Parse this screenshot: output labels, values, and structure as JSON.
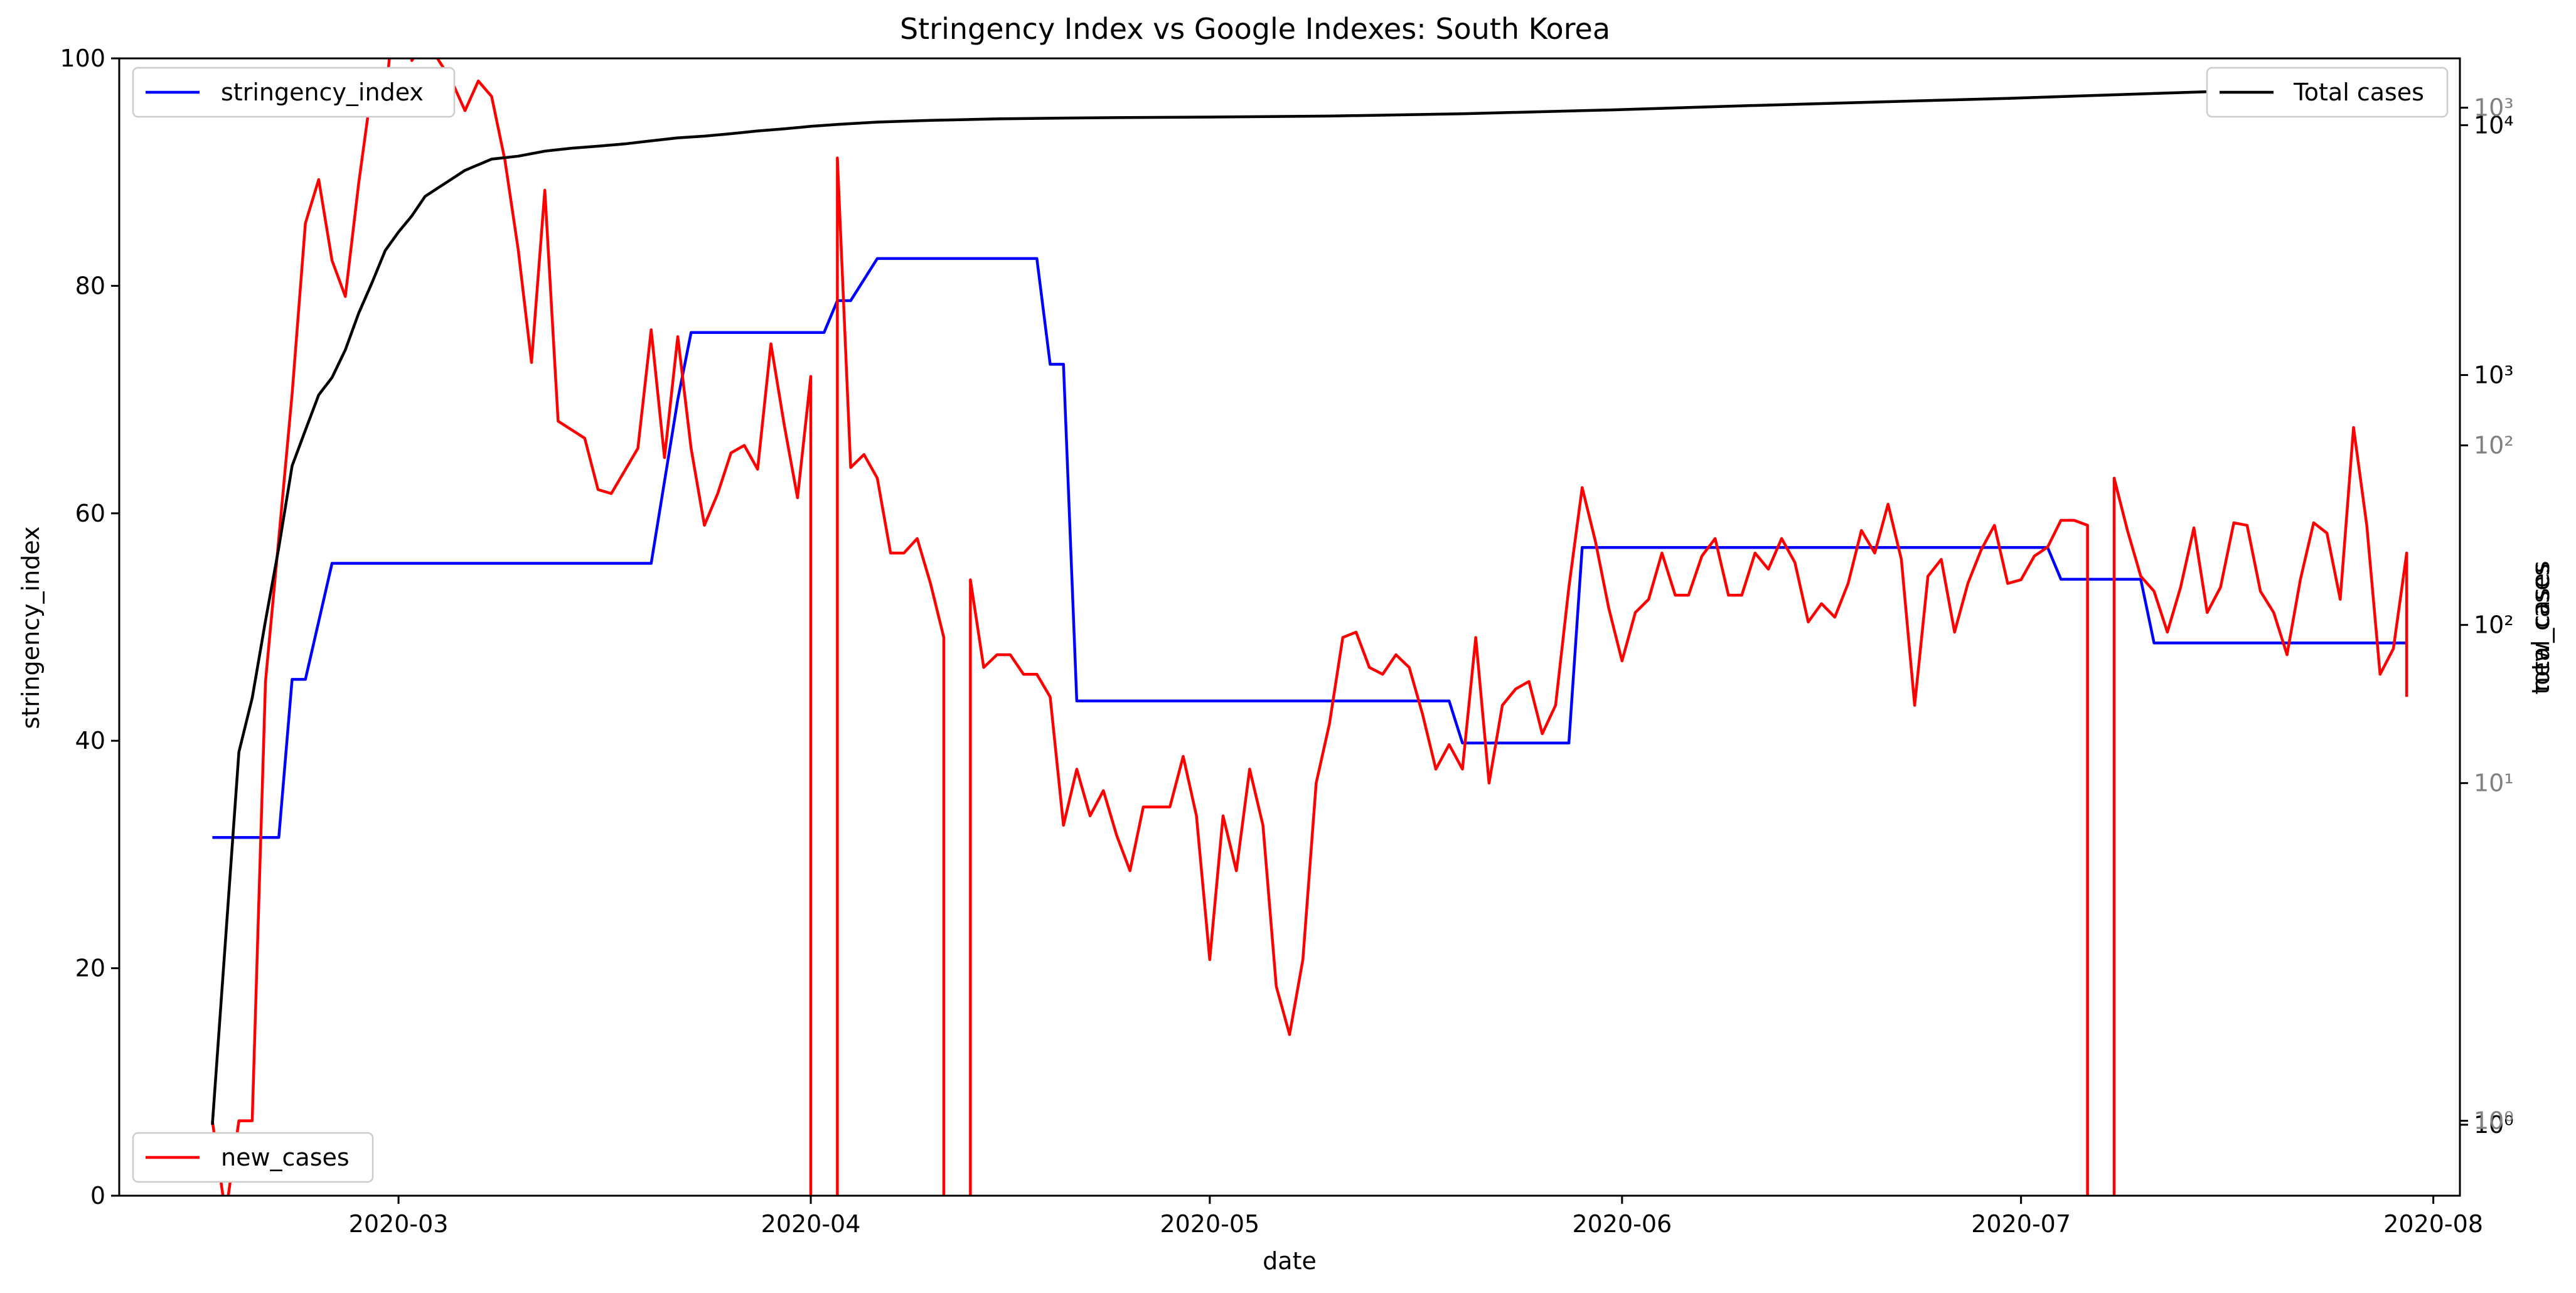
{
  "chart_data": {
    "type": "line",
    "title": "Stringency Index vs Google Indexes:  South Korea",
    "xlabel": "date",
    "ylabel": "stringency_index",
    "ylabel_right": "total_cases",
    "ylabel_right_overlap": "new_cases",
    "x_range": [
      "2020-02-09",
      "2020-08-03"
    ],
    "x_ticks": [
      "2020-03",
      "2020-04",
      "2020-05",
      "2020-06",
      "2020-07",
      "2020-08"
    ],
    "y_left": {
      "range": [
        0,
        100
      ],
      "ticks": [
        "0",
        "20",
        "40",
        "60",
        "80",
        "100"
      ]
    },
    "y_total_cases_axis": {
      "scale": "log",
      "range": [
        0.52,
        18500
      ],
      "tick_values": [
        1,
        100,
        1000,
        10000
      ],
      "tick_labels": [
        "10⁰",
        "10²",
        "10³",
        "10⁴"
      ]
    },
    "y_new_cases_axis": {
      "scale": "log",
      "range": [
        0.6,
        1400
      ],
      "tick_values": [
        1,
        10,
        100,
        1000
      ],
      "tick_labels": [
        "10⁰",
        "10¹",
        "10²",
        "10³"
      ]
    },
    "grid": false,
    "colors": {
      "stringency_index": "#0000ff",
      "new_cases": "#ff0000",
      "total_cases": "#000000",
      "secondary_ticks": "#808080"
    },
    "legends": [
      {
        "label": "stringency_index",
        "color": "#0000ff",
        "placement": "upper-left"
      },
      {
        "label": "new_cases",
        "color": "#ff0000",
        "placement": "lower-left"
      },
      {
        "label": "Total cases",
        "color": "#000000",
        "placement": "upper-right"
      }
    ],
    "series": [
      {
        "name": "stringency_index",
        "color": "#0000ff",
        "axis": "left",
        "points": [
          [
            "2020-02-16",
            31.5
          ],
          [
            "2020-02-21",
            31.5
          ],
          [
            "2020-02-22",
            45.4
          ],
          [
            "2020-02-23",
            45.4
          ],
          [
            "2020-02-25",
            55.6
          ],
          [
            "2020-03-20",
            55.6
          ],
          [
            "2020-03-22",
            70.0
          ],
          [
            "2020-03-23",
            75.9
          ],
          [
            "2020-04-02",
            75.9
          ],
          [
            "2020-04-03",
            78.7
          ],
          [
            "2020-04-04",
            78.7
          ],
          [
            "2020-04-06",
            82.4
          ],
          [
            "2020-04-18",
            82.4
          ],
          [
            "2020-04-19",
            73.1
          ],
          [
            "2020-04-20",
            73.1
          ],
          [
            "2020-04-21",
            43.5
          ],
          [
            "2020-05-19",
            43.5
          ],
          [
            "2020-05-20",
            39.8
          ],
          [
            "2020-05-28",
            39.8
          ],
          [
            "2020-05-29",
            57.0
          ],
          [
            "2020-07-03",
            57.0
          ],
          [
            "2020-07-04",
            54.2
          ],
          [
            "2020-07-10",
            54.2
          ],
          [
            "2020-07-11",
            48.6
          ],
          [
            "2020-07-30",
            48.6
          ]
        ]
      },
      {
        "name": "new_cases",
        "color": "#ff0000",
        "axis": "right-new",
        "points": [
          [
            "2020-02-16",
            1
          ],
          [
            "2020-02-17",
            0
          ],
          [
            "2020-02-18",
            1
          ],
          [
            "2020-02-19",
            1
          ],
          [
            "2020-02-20",
            20
          ],
          [
            "2020-02-21",
            53
          ],
          [
            "2020-02-22",
            142
          ],
          [
            "2020-02-23",
            455
          ],
          [
            "2020-02-24",
            613
          ],
          [
            "2020-02-25",
            353
          ],
          [
            "2020-02-26",
            276
          ],
          [
            "2020-02-27",
            595
          ],
          [
            "2020-02-28",
            1157
          ],
          [
            "2020-02-29",
            1061
          ],
          [
            "2020-03-01",
            2573
          ],
          [
            "2020-03-02",
            1379
          ],
          [
            "2020-03-03",
            1600
          ],
          [
            "2020-03-05",
            1200
          ],
          [
            "2020-03-06",
            980
          ],
          [
            "2020-03-07",
            1200
          ],
          [
            "2020-03-08",
            1080
          ],
          [
            "2020-03-09",
            700
          ],
          [
            "2020-03-10",
            380
          ],
          [
            "2020-03-11",
            176
          ],
          [
            "2020-03-12",
            570
          ],
          [
            "2020-03-13",
            118
          ],
          [
            "2020-03-15",
            105
          ],
          [
            "2020-03-16",
            74
          ],
          [
            "2020-03-17",
            72
          ],
          [
            "2020-03-18",
            84
          ],
          [
            "2020-03-19",
            98
          ],
          [
            "2020-03-20",
            220
          ],
          [
            "2020-03-21",
            92
          ],
          [
            "2020-03-22",
            210
          ],
          [
            "2020-03-23",
            98
          ],
          [
            "2020-03-24",
            58
          ],
          [
            "2020-03-25",
            72
          ],
          [
            "2020-03-26",
            95
          ],
          [
            "2020-03-27",
            100
          ],
          [
            "2020-03-28",
            85
          ],
          [
            "2020-03-29",
            200
          ],
          [
            "2020-03-30",
            115
          ],
          [
            "2020-03-31",
            70
          ],
          [
            "2020-04-01",
            160
          ],
          [
            "2020-04-01",
            0
          ],
          [
            "2020-04-03",
            0
          ],
          [
            "2020-04-03",
            710
          ],
          [
            "2020-04-04",
            86
          ],
          [
            "2020-04-05",
            94
          ],
          [
            "2020-04-06",
            80
          ],
          [
            "2020-04-07",
            48
          ],
          [
            "2020-04-08",
            48
          ],
          [
            "2020-04-09",
            53
          ],
          [
            "2020-04-10",
            39
          ],
          [
            "2020-04-11",
            27
          ],
          [
            "2020-04-11",
            0
          ],
          [
            "2020-04-13",
            0
          ],
          [
            "2020-04-13",
            40
          ],
          [
            "2020-04-14",
            22
          ],
          [
            "2020-04-15",
            24
          ],
          [
            "2020-04-16",
            24
          ],
          [
            "2020-04-17",
            21
          ],
          [
            "2020-04-18",
            21
          ],
          [
            "2020-04-19",
            18
          ],
          [
            "2020-04-20",
            7.5
          ],
          [
            "2020-04-21",
            11
          ],
          [
            "2020-04-22",
            8
          ],
          [
            "2020-04-23",
            9.5
          ],
          [
            "2020-04-24",
            7
          ],
          [
            "2020-04-25",
            5.5
          ],
          [
            "2020-04-26",
            8.5
          ],
          [
            "2020-04-27",
            8.5
          ],
          [
            "2020-04-28",
            8.5
          ],
          [
            "2020-04-29",
            12
          ],
          [
            "2020-04-30",
            8
          ],
          [
            "2020-05-01",
            3
          ],
          [
            "2020-05-02",
            8
          ],
          [
            "2020-05-03",
            5.5
          ],
          [
            "2020-05-04",
            11
          ],
          [
            "2020-05-05",
            7.5
          ],
          [
            "2020-05-06",
            2.5
          ],
          [
            "2020-05-07",
            1.8
          ],
          [
            "2020-05-08",
            3
          ],
          [
            "2020-05-09",
            10
          ],
          [
            "2020-05-10",
            15
          ],
          [
            "2020-05-11",
            27
          ],
          [
            "2020-05-12",
            28
          ],
          [
            "2020-05-13",
            22
          ],
          [
            "2020-05-14",
            21
          ],
          [
            "2020-05-15",
            24
          ],
          [
            "2020-05-16",
            22
          ],
          [
            "2020-05-17",
            16
          ],
          [
            "2020-05-18",
            11
          ],
          [
            "2020-05-19",
            13
          ],
          [
            "2020-05-20",
            11
          ],
          [
            "2020-05-21",
            27
          ],
          [
            "2020-05-22",
            10
          ],
          [
            "2020-05-23",
            17
          ],
          [
            "2020-05-24",
            19
          ],
          [
            "2020-05-25",
            20
          ],
          [
            "2020-05-26",
            14
          ],
          [
            "2020-05-27",
            17
          ],
          [
            "2020-05-28",
            38
          ],
          [
            "2020-05-29",
            75
          ],
          [
            "2020-05-30",
            52
          ],
          [
            "2020-05-31",
            33
          ],
          [
            "2020-06-01",
            23
          ],
          [
            "2020-06-02",
            32
          ],
          [
            "2020-06-03",
            35
          ],
          [
            "2020-06-04",
            48
          ],
          [
            "2020-06-05",
            36
          ],
          [
            "2020-06-06",
            36
          ],
          [
            "2020-06-07",
            47
          ],
          [
            "2020-06-08",
            53
          ],
          [
            "2020-06-09",
            36
          ],
          [
            "2020-06-10",
            36
          ],
          [
            "2020-06-11",
            48
          ],
          [
            "2020-06-12",
            43
          ],
          [
            "2020-06-13",
            53
          ],
          [
            "2020-06-14",
            45
          ],
          [
            "2020-06-15",
            30
          ],
          [
            "2020-06-16",
            34
          ],
          [
            "2020-06-17",
            31
          ],
          [
            "2020-06-18",
            39
          ],
          [
            "2020-06-19",
            56
          ],
          [
            "2020-06-20",
            48
          ],
          [
            "2020-06-21",
            67
          ],
          [
            "2020-06-22",
            46
          ],
          [
            "2020-06-23",
            17
          ],
          [
            "2020-06-24",
            41
          ],
          [
            "2020-06-25",
            46
          ],
          [
            "2020-06-26",
            28
          ],
          [
            "2020-06-27",
            39
          ],
          [
            "2020-06-28",
            49
          ],
          [
            "2020-06-29",
            58
          ],
          [
            "2020-06-30",
            39
          ],
          [
            "2020-07-01",
            40
          ],
          [
            "2020-07-02",
            47
          ],
          [
            "2020-07-03",
            50
          ],
          [
            "2020-07-04",
            60
          ],
          [
            "2020-07-05",
            60
          ],
          [
            "2020-07-06",
            58
          ],
          [
            "2020-07-06",
            0
          ],
          [
            "2020-07-08",
            0
          ],
          [
            "2020-07-08",
            80
          ],
          [
            "2020-07-09",
            56
          ],
          [
            "2020-07-10",
            41
          ],
          [
            "2020-07-11",
            37
          ],
          [
            "2020-07-12",
            28
          ],
          [
            "2020-07-13",
            38
          ],
          [
            "2020-07-14",
            57
          ],
          [
            "2020-07-15",
            32
          ],
          [
            "2020-07-16",
            38
          ],
          [
            "2020-07-17",
            59
          ],
          [
            "2020-07-18",
            58
          ],
          [
            "2020-07-19",
            37
          ],
          [
            "2020-07-20",
            32
          ],
          [
            "2020-07-21",
            24
          ],
          [
            "2020-07-22",
            40
          ],
          [
            "2020-07-23",
            59
          ],
          [
            "2020-07-24",
            55
          ],
          [
            "2020-07-25",
            35
          ],
          [
            "2020-07-26",
            113
          ],
          [
            "2020-07-27",
            58
          ],
          [
            "2020-07-28",
            21
          ],
          [
            "2020-07-29",
            25
          ],
          [
            "2020-07-30",
            48
          ],
          [
            "2020-07-30",
            18
          ]
        ]
      },
      {
        "name": "Total cases",
        "color": "#000000",
        "axis": "right-total",
        "points": [
          [
            "2020-02-16",
            1
          ],
          [
            "2020-02-18",
            31
          ],
          [
            "2020-02-19",
            51
          ],
          [
            "2020-02-20",
            104
          ],
          [
            "2020-02-21",
            204
          ],
          [
            "2020-02-22",
            433
          ],
          [
            "2020-02-23",
            602
          ],
          [
            "2020-02-24",
            833
          ],
          [
            "2020-02-25",
            977
          ],
          [
            "2020-02-26",
            1261
          ],
          [
            "2020-02-27",
            1766
          ],
          [
            "2020-02-28",
            2337
          ],
          [
            "2020-02-29",
            3150
          ],
          [
            "2020-03-01",
            3736
          ],
          [
            "2020-03-02",
            4335
          ],
          [
            "2020-03-03",
            5186
          ],
          [
            "2020-03-04",
            5621
          ],
          [
            "2020-03-05",
            6088
          ],
          [
            "2020-03-06",
            6593
          ],
          [
            "2020-03-08",
            7313
          ],
          [
            "2020-03-10",
            7513
          ],
          [
            "2020-03-12",
            7869
          ],
          [
            "2020-03-14",
            8086
          ],
          [
            "2020-03-16",
            8236
          ],
          [
            "2020-03-18",
            8413
          ],
          [
            "2020-03-20",
            8652
          ],
          [
            "2020-03-22",
            8897
          ],
          [
            "2020-03-24",
            9037
          ],
          [
            "2020-03-26",
            9241
          ],
          [
            "2020-03-28",
            9478
          ],
          [
            "2020-03-30",
            9661
          ],
          [
            "2020-04-01",
            9887
          ],
          [
            "2020-04-03",
            10062
          ],
          [
            "2020-04-06",
            10284
          ],
          [
            "2020-04-10",
            10450
          ],
          [
            "2020-04-15",
            10591
          ],
          [
            "2020-04-20",
            10674
          ],
          [
            "2020-04-25",
            10728
          ],
          [
            "2020-05-01",
            10774
          ],
          [
            "2020-05-10",
            10874
          ],
          [
            "2020-05-20",
            11110
          ],
          [
            "2020-05-31",
            11503
          ],
          [
            "2020-06-10",
            11947
          ],
          [
            "2020-06-20",
            12373
          ],
          [
            "2020-06-30",
            12800
          ],
          [
            "2020-07-10",
            13338
          ],
          [
            "2020-07-20",
            13879
          ],
          [
            "2020-07-30",
            14336
          ]
        ]
      }
    ]
  }
}
